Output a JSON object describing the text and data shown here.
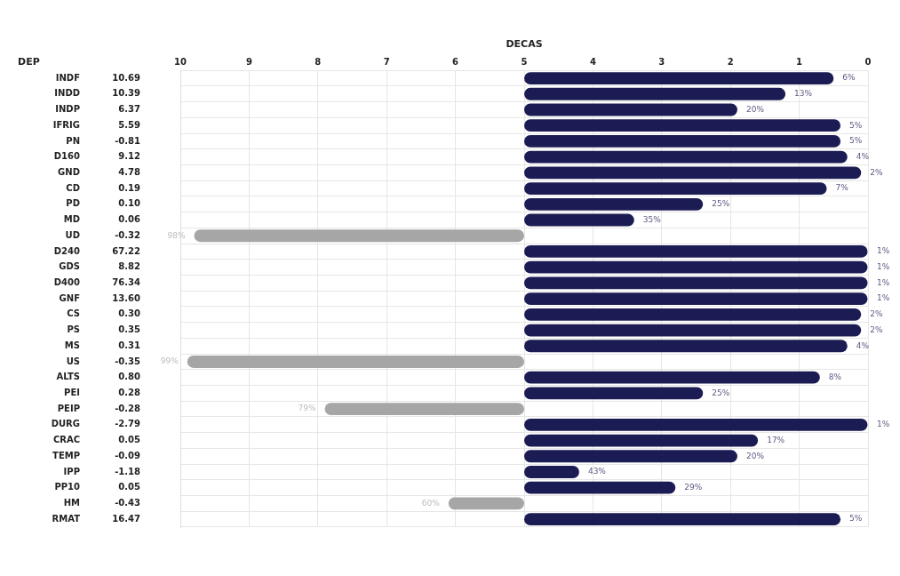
{
  "chart_data": {
    "type": "bar",
    "orientation": "horizontal",
    "xlabel": "DECAS",
    "categories": [
      "INDF",
      "INDD",
      "INDP",
      "IFRIG",
      "PN",
      "D160",
      "GND",
      "CD",
      "PD",
      "MD",
      "UD",
      "D240",
      "GDS",
      "D400",
      "GNF",
      "CS",
      "PS",
      "MS",
      "US",
      "ALTS",
      "PEI",
      "PEIP",
      "DURG",
      "CRAC",
      "TEMP",
      "IPP",
      "PP10",
      "HM",
      "RMAT"
    ],
    "y2_categories": [
      "10.69",
      "10.39",
      "6.37",
      "5.59",
      "-0.81",
      "9.12",
      "4.78",
      "0.19",
      "0.10",
      "0.06",
      "-0.32",
      "67.22",
      "8.82",
      "76.34",
      "13.60",
      "0.30",
      "0.35",
      "0.31",
      "-0.35",
      "0.80",
      "0.28",
      "-0.28",
      "-2.79",
      "0.05",
      "-0.09",
      "-1.18",
      "0.05",
      "-0.43",
      "16.47"
    ],
    "base": [
      5,
      5,
      5,
      5,
      5,
      5,
      5,
      5,
      5,
      5,
      5,
      5,
      5,
      5,
      5,
      5,
      5,
      5,
      5,
      5,
      5,
      5,
      5,
      5,
      5,
      5,
      5,
      5,
      5
    ],
    "values": [
      -4.5,
      -3.8,
      -3.1,
      -4.6,
      -4.6,
      -4.7,
      -4.9,
      -4.4,
      -2.6,
      -1.6,
      4.8,
      -5,
      -5,
      -5,
      -5,
      -4.9,
      -4.9,
      -4.7,
      4.9,
      -4.3,
      -2.6,
      2.9,
      -5,
      -3.4,
      -3.1,
      -0.8,
      -2.2,
      1.1,
      -4.6
    ],
    "colors": [
      "#1c1c54",
      "#1c1c54",
      "#1c1c54",
      "#1c1c54",
      "#1c1c54",
      "#1c1c54",
      "#1c1c54",
      "#1c1c54",
      "#1c1c54",
      "#1c1c54",
      "#a6a6a6",
      "#1c1c54",
      "#1c1c54",
      "#1c1c54",
      "#1c1c54",
      "#1c1c54",
      "#1c1c54",
      "#1c1c54",
      "#a6a6a6",
      "#1c1c54",
      "#1c1c54",
      "#a6a6a6",
      "#1c1c54",
      "#1c1c54",
      "#1c1c54",
      "#1c1c54",
      "#1c1c54",
      "#a6a6a6",
      "#1c1c54"
    ],
    "annotations": [
      "DEP",
      {
        "text": "6%",
        "x": 0.5,
        "y": "INDF"
      },
      {
        "text": "13%",
        "x": 1.2,
        "y": "INDD"
      },
      {
        "text": "20%",
        "x": 1.9,
        "y": "INDP"
      },
      {
        "text": "5%",
        "x": 0.4,
        "y": "IFRIG"
      },
      {
        "text": "5%",
        "x": 0.4,
        "y": "PN"
      },
      {
        "text": "4%",
        "x": 0.3,
        "y": "D160"
      },
      {
        "text": "2%",
        "x": 0.1,
        "y": "GND"
      },
      {
        "text": "7%",
        "x": 0.6,
        "y": "CD"
      },
      {
        "text": "25%",
        "x": 2.4,
        "y": "PD"
      },
      {
        "text": "35%",
        "x": 3.4,
        "y": "MD"
      },
      {
        "text": "98%",
        "x": 9.8,
        "y": "UD"
      },
      {
        "text": "1%",
        "x": 0,
        "y": "D240"
      },
      {
        "text": "1%",
        "x": 0,
        "y": "GDS"
      },
      {
        "text": "1%",
        "x": 0,
        "y": "D400"
      },
      {
        "text": "1%",
        "x": 0,
        "y": "GNF"
      },
      {
        "text": "2%",
        "x": 0.1,
        "y": "CS"
      },
      {
        "text": "2%",
        "x": 0.1,
        "y": "PS"
      },
      {
        "text": "4%",
        "x": 0.3,
        "y": "MS"
      },
      {
        "text": "99%",
        "x": 9.9,
        "y": "US"
      },
      {
        "text": "8%",
        "x": 0.7,
        "y": "ALTS"
      },
      {
        "text": "25%",
        "x": 2.4,
        "y": "PEI"
      },
      {
        "text": "79%",
        "x": 7.9,
        "y": "PEIP"
      },
      {
        "text": "1%",
        "x": 0,
        "y": "DURG"
      },
      {
        "text": "17%",
        "x": 1.6,
        "y": "CRAC"
      },
      {
        "text": "20%",
        "x": 1.9,
        "y": "TEMP"
      },
      {
        "text": "43%",
        "x": 4.2,
        "y": "IPP"
      },
      {
        "text": "29%",
        "x": 2.8,
        "y": "PP10"
      },
      {
        "text": "60%",
        "x": 6.1,
        "y": "HM"
      },
      {
        "text": "5%",
        "x": 0.4,
        "y": "RMAT"
      }
    ],
    "xlim": [
      10,
      0
    ],
    "xticks": [
      10,
      9,
      8,
      7,
      6,
      5,
      4,
      3,
      2,
      1,
      0
    ],
    "grid": true
  }
}
